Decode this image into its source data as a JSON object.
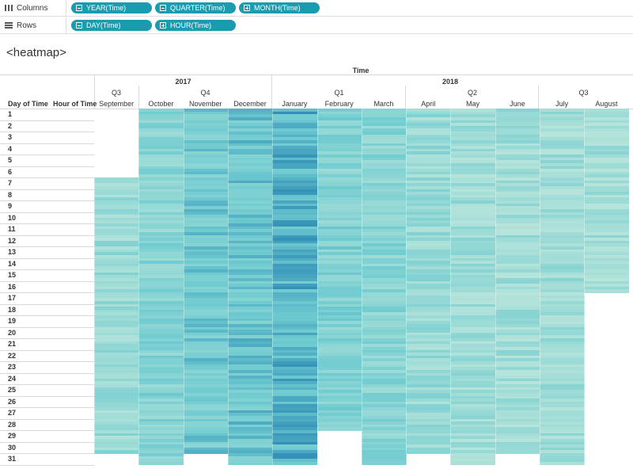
{
  "shelves": {
    "columns": {
      "label": "Columns",
      "pills": [
        {
          "label": "YEAR(Time)",
          "type": "minus"
        },
        {
          "label": "QUARTER(Time)",
          "type": "minus"
        },
        {
          "label": "MONTH(Time)",
          "type": "plus"
        }
      ]
    },
    "rows": {
      "label": "Rows",
      "pills": [
        {
          "label": "DAY(Time)",
          "type": "minus"
        },
        {
          "label": "HOUR(Time)",
          "type": "plus"
        }
      ]
    }
  },
  "view_title": "<heatmap>",
  "header": {
    "field_label": "Time",
    "row_field_labels": [
      "Day of Time",
      "Hour of Time"
    ],
    "years": [
      "2017",
      "2018"
    ],
    "quarters": [
      "Q3",
      "Q4",
      "Q1",
      "Q2",
      "Q3"
    ],
    "months": [
      "September",
      "October",
      "November",
      "December",
      "January",
      "February",
      "March",
      "April",
      "May",
      "June",
      "July",
      "August"
    ]
  },
  "days": [
    "1",
    "2",
    "3",
    "4",
    "5",
    "6",
    "7",
    "8",
    "9",
    "10",
    "11",
    "12",
    "13",
    "14",
    "15",
    "16",
    "17",
    "18",
    "19",
    "20",
    "21",
    "22",
    "23",
    "24",
    "25",
    "26",
    "27",
    "28",
    "29",
    "30",
    "31"
  ],
  "colors": {
    "pill": "#1b9bb0",
    "heat_low": "#b6e4da",
    "heat_mid": "#6fcbd0",
    "heat_high": "#0e6ea8"
  },
  "chart_data": {
    "type": "heatmap",
    "x": "Month of Time (Sep 2017 - Aug 2018)",
    "y": "Day of Time / Hour of Time",
    "intensity_by_month": {
      "September": 0.18,
      "October": 0.32,
      "November": 0.45,
      "December": 0.5,
      "January": 0.62,
      "February": 0.35,
      "March": 0.3,
      "April": 0.2,
      "May": 0.15,
      "June": 0.14,
      "July": 0.14,
      "August": 0.12
    },
    "empty_days": {
      "September": [
        "1",
        "2",
        "3",
        "4",
        "5",
        "6",
        "31"
      ],
      "November": [
        "31"
      ],
      "February": [
        "29",
        "30",
        "31"
      ],
      "April": [
        "31"
      ],
      "June": [
        "31"
      ],
      "August": [
        "17",
        "18",
        "19",
        "20",
        "21",
        "22",
        "23",
        "24",
        "25",
        "26",
        "27",
        "28",
        "29",
        "30",
        "31"
      ]
    }
  }
}
